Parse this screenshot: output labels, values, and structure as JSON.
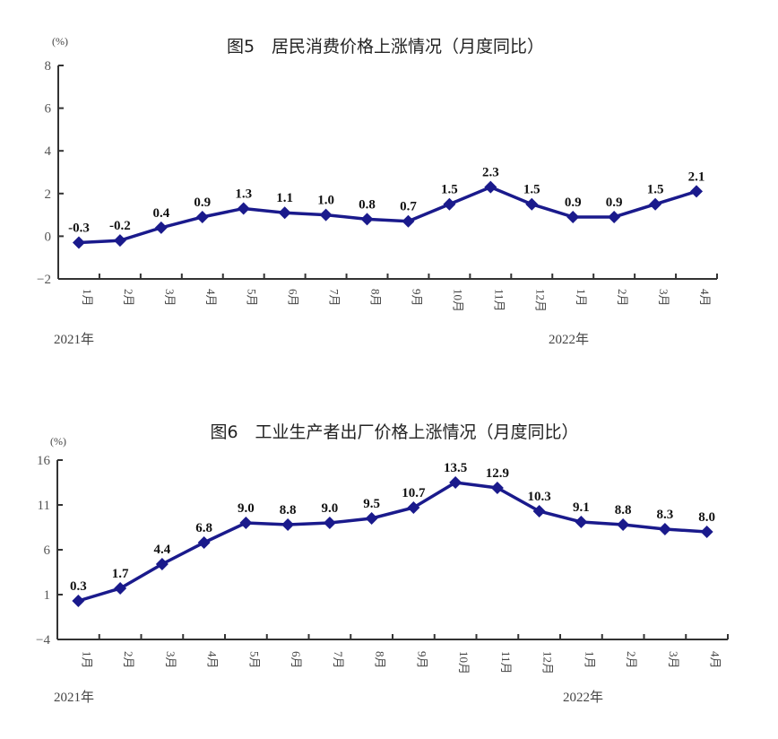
{
  "chart_data": [
    {
      "type": "line",
      "title": "图5　居民消费价格上涨情况（月度同比）",
      "unit": "(%)",
      "categories": [
        "1月",
        "2月",
        "3月",
        "4月",
        "5月",
        "6月",
        "7月",
        "8月",
        "9月",
        "10月",
        "11月",
        "12月",
        "1月",
        "2月",
        "3月",
        "4月"
      ],
      "year_labels": [
        "2021年",
        "2022年"
      ],
      "values": [
        -0.3,
        -0.2,
        0.4,
        0.9,
        1.3,
        1.1,
        1.0,
        0.8,
        0.7,
        1.5,
        2.3,
        1.5,
        0.9,
        0.9,
        1.5,
        2.1
      ],
      "value_labels": [
        "-0.3",
        "-0.2",
        "0.4",
        "0.9",
        "1.3",
        "1.1",
        "1.0",
        "0.8",
        "0.7",
        "1.5",
        "2.3",
        "1.5",
        "0.9",
        "0.9",
        "1.5",
        "2.1"
      ],
      "yticks": [
        8,
        6,
        4,
        2,
        0,
        -2
      ],
      "ytick_labels": [
        "8",
        "6",
        "4",
        "2",
        "0",
        "−2"
      ],
      "ylim": [
        -2,
        8
      ],
      "color": "#1a1a8c",
      "grid": false
    },
    {
      "type": "line",
      "title": "图6　工业生产者出厂价格上涨情况（月度同比）",
      "unit": "(%)",
      "categories": [
        "1月",
        "2月",
        "3月",
        "4月",
        "5月",
        "6月",
        "7月",
        "8月",
        "9月",
        "10月",
        "11月",
        "12月",
        "1月",
        "2月",
        "3月",
        "4月"
      ],
      "year_labels": [
        "2021年",
        "2022年"
      ],
      "values": [
        0.3,
        1.7,
        4.4,
        6.8,
        9.0,
        8.8,
        9.0,
        9.5,
        10.7,
        13.5,
        12.9,
        10.3,
        9.1,
        8.8,
        8.3,
        8.0
      ],
      "value_labels": [
        "0.3",
        "1.7",
        "4.4",
        "6.8",
        "9.0",
        "8.8",
        "9.0",
        "9.5",
        "10.7",
        "13.5",
        "12.9",
        "10.3",
        "9.1",
        "8.8",
        "8.3",
        "8.0"
      ],
      "yticks": [
        16,
        11,
        6,
        1,
        -4
      ],
      "ytick_labels": [
        "16",
        "11",
        "6",
        "1",
        "−4"
      ],
      "ylim": [
        -4,
        16
      ],
      "color": "#1a1a8c",
      "grid": false
    }
  ]
}
